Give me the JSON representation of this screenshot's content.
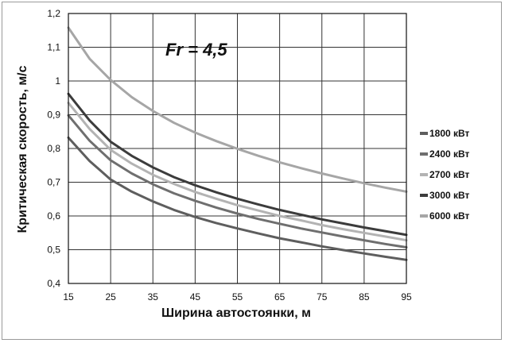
{
  "chart_data": {
    "type": "line",
    "title": "",
    "annotation": "Fr = 4,5",
    "xlabel": "Ширина автостоянки, м",
    "ylabel": "Критическая скорость, м/с",
    "xlim": [
      15,
      95
    ],
    "ylim": [
      0.4,
      1.2
    ],
    "x_ticks": [
      "15",
      "25",
      "35",
      "45",
      "55",
      "65",
      "75",
      "85",
      "95"
    ],
    "y_ticks": [
      "0,4",
      "0,5",
      "0,6",
      "0,7",
      "0,8",
      "0,9",
      "1",
      "1,1",
      "1,2"
    ],
    "grid": true,
    "legend_position": "right",
    "x": [
      15,
      20,
      25,
      30,
      35,
      40,
      45,
      50,
      55,
      60,
      65,
      70,
      75,
      80,
      85,
      90,
      95
    ],
    "series": [
      {
        "name": "1800 кВт",
        "color": "#5e5e5e",
        "values": [
          0.832,
          0.763,
          0.708,
          0.672,
          0.643,
          0.618,
          0.597,
          0.579,
          0.563,
          0.548,
          0.534,
          0.522,
          0.51,
          0.499,
          0.489,
          0.479,
          0.47
        ]
      },
      {
        "name": "2400 кВт",
        "color": "#6f6f6f",
        "values": [
          0.898,
          0.823,
          0.765,
          0.726,
          0.694,
          0.667,
          0.645,
          0.625,
          0.607,
          0.591,
          0.577,
          0.563,
          0.551,
          0.539,
          0.528,
          0.517,
          0.507
        ]
      },
      {
        "name": "2700 кВт",
        "color": "#b3b3b3",
        "values": [
          0.935,
          0.858,
          0.796,
          0.755,
          0.722,
          0.695,
          0.671,
          0.651,
          0.632,
          0.616,
          0.6,
          0.587,
          0.573,
          0.561,
          0.55,
          0.539,
          0.528
        ]
      },
      {
        "name": "3000 кВт",
        "color": "#3c3c3c",
        "values": [
          0.962,
          0.883,
          0.82,
          0.778,
          0.744,
          0.715,
          0.691,
          0.67,
          0.651,
          0.634,
          0.618,
          0.604,
          0.59,
          0.578,
          0.566,
          0.555,
          0.544
        ]
      },
      {
        "name": "6000 кВт",
        "color": "#a6a6a6",
        "values": [
          1.158,
          1.066,
          1.003,
          0.952,
          0.911,
          0.876,
          0.847,
          0.822,
          0.799,
          0.778,
          0.759,
          0.742,
          0.726,
          0.711,
          0.697,
          0.684,
          0.672
        ]
      }
    ]
  }
}
